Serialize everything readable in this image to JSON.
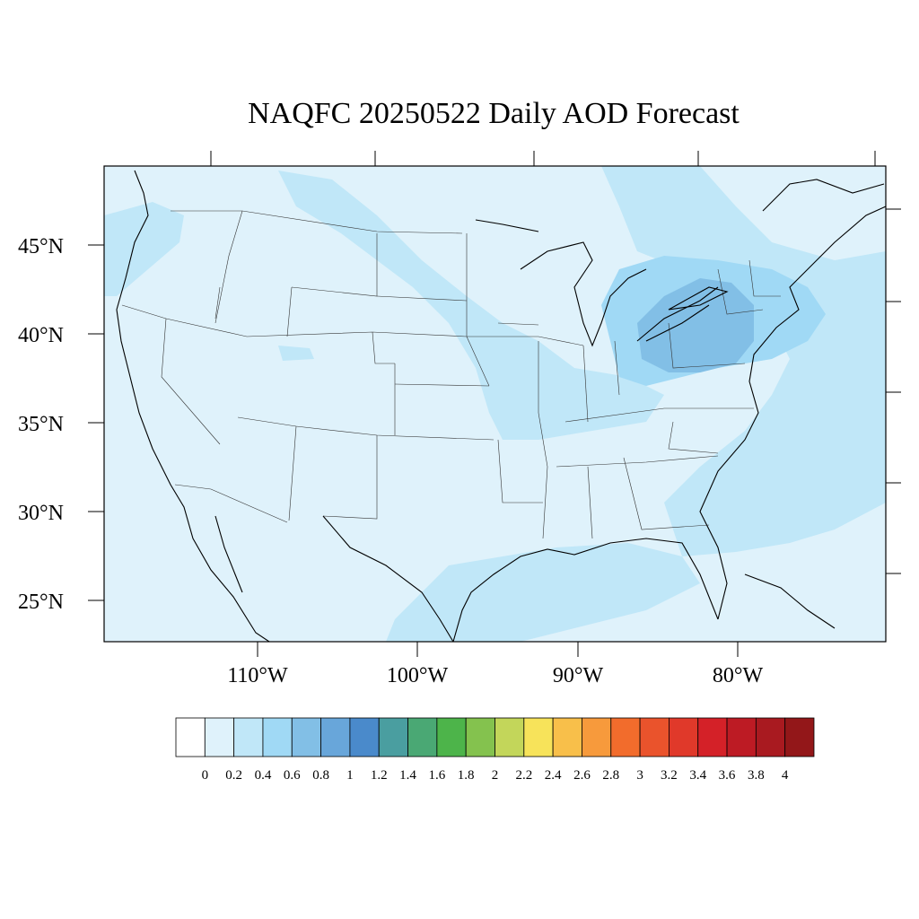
{
  "title": "NAQFC 20250522 Daily AOD Forecast",
  "map": {
    "projection": "lambert-conformal",
    "region": "CONUS",
    "latitude_labels": [
      "45°N",
      "40°N",
      "35°N",
      "30°N",
      "25°N"
    ],
    "longitude_labels": [
      "110°W",
      "100°W",
      "90°W",
      "80°W"
    ],
    "field": "AOD",
    "dominant_range": "0-0.2",
    "elevated_regions": [
      {
        "region": "Great Lakes / Pennsylvania / New York",
        "range": "0.6-0.8"
      },
      {
        "region": "Ohio Valley / Midwest",
        "range": "0.2-0.4"
      },
      {
        "region": "Northern Plains band",
        "range": "0.2-0.4"
      },
      {
        "region": "Western Atlantic",
        "range": "0.2-0.4"
      },
      {
        "region": "Gulf of Mexico",
        "range": "0.2-0.4"
      }
    ]
  },
  "colorbar": {
    "labels": [
      "0",
      "0.2",
      "0.4",
      "0.6",
      "0.8",
      "1",
      "1.2",
      "1.4",
      "1.6",
      "1.8",
      "2",
      "2.2",
      "2.4",
      "2.6",
      "2.8",
      "3",
      "3.2",
      "3.4",
      "3.6",
      "3.8",
      "4"
    ],
    "colors": [
      "#ffffff",
      "#dff2fb",
      "#c0e7f8",
      "#a0d9f5",
      "#82bfe6",
      "#68a6da",
      "#4a8acb",
      "#4a9ea0",
      "#4aa874",
      "#4db44a",
      "#84c24e",
      "#c3d65a",
      "#f7e35a",
      "#f8bf4a",
      "#f79a3c",
      "#f26c2c",
      "#ea532c",
      "#e0392a",
      "#d42128",
      "#bd1b24",
      "#a91a20",
      "#931719"
    ]
  }
}
